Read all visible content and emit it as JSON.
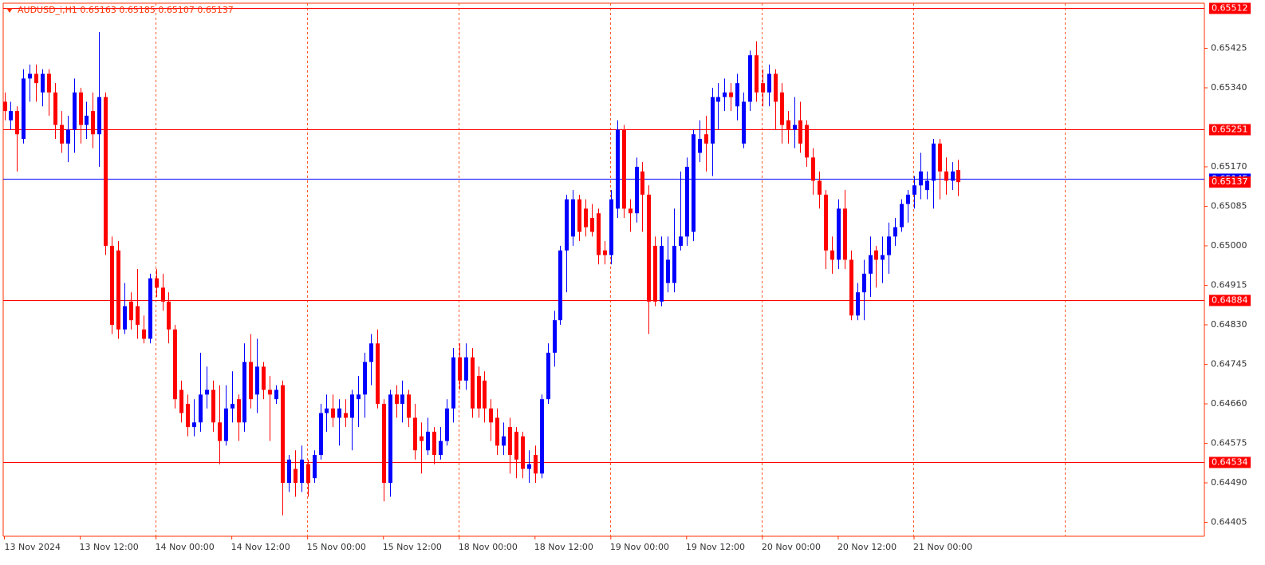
{
  "chart_data": {
    "type": "candlestick",
    "title": "AUDUSD_i,H1  0.65163 0.65185 0.65107 0.65137",
    "categories": [
      "13 Nov 2024",
      null,
      null,
      null,
      null,
      null,
      null,
      null,
      null,
      null,
      null,
      null,
      "13 Nov 12:00",
      null,
      null,
      null,
      null,
      null,
      null,
      null,
      null,
      null,
      null,
      null,
      "14 Nov 00:00",
      null,
      null,
      null,
      null,
      null,
      null,
      null,
      null,
      null,
      null,
      null,
      "14 Nov 12:00",
      null,
      null,
      null,
      null,
      null,
      null,
      null,
      null,
      null,
      null,
      null,
      "15 Nov 00:00",
      null,
      null,
      null,
      null,
      null,
      null,
      null,
      null,
      null,
      null,
      null,
      "15 Nov 12:00",
      null,
      null,
      null,
      null,
      null,
      null,
      null,
      null,
      null,
      null,
      null,
      "18 Nov 00:00",
      null,
      null,
      null,
      null,
      null,
      null,
      null,
      null,
      null,
      null,
      null,
      "18 Nov 12:00",
      null,
      null,
      null,
      null,
      null,
      null,
      null,
      null,
      null,
      null,
      null,
      "19 Nov 00:00",
      null,
      null,
      null,
      null,
      null,
      null,
      null,
      null,
      null,
      null,
      null,
      "19 Nov 12:00",
      null,
      null,
      null,
      null,
      null,
      null,
      null,
      null,
      null,
      null,
      null,
      "20 Nov 00:00",
      null,
      null,
      null,
      null,
      null,
      null,
      null,
      null,
      null,
      null,
      null,
      "20 Nov 12:00",
      null,
      null,
      null,
      null,
      null,
      null,
      null,
      null,
      null,
      null,
      null,
      "21 Nov 00:00",
      null,
      null,
      null,
      null,
      null,
      null,
      null
    ],
    "open": [
      0.6531,
      0.6527,
      0.6529,
      0.6523,
      0.6536,
      0.6537,
      0.6533,
      0.6537,
      0.6533,
      0.6526,
      0.6522,
      0.6525,
      0.6533,
      0.6526,
      0.6529,
      0.6524,
      0.6532,
      0.65,
      0.6499,
      0.6482,
      0.6488,
      0.6487,
      0.6482,
      0.648,
      0.6493,
      0.6491,
      0.6488,
      0.6482,
      0.6469,
      0.6466,
      0.6461,
      0.6462,
      0.6468,
      0.6469,
      0.6462,
      0.6458,
      0.6465,
      0.6467,
      0.6462,
      0.6475,
      0.6468,
      0.6474,
      0.6469,
      0.6467,
      0.647,
      0.6449,
      0.6452,
      0.6449,
      0.6453,
      0.645,
      0.6455,
      0.6464,
      0.6465,
      0.6463,
      0.6464,
      0.6463,
      0.6467,
      0.6468,
      0.6475,
      0.6479,
      0.6466,
      0.6449,
      0.6468,
      0.6466,
      0.6468,
      0.6463,
      0.6459,
      0.6456,
      0.646,
      0.6455,
      0.6458,
      0.6465,
      0.6476,
      0.6471,
      0.6476,
      0.6472,
      0.6471,
      0.6465,
      0.6463,
      0.6457,
      0.6461,
      0.646,
      0.6459,
      0.6452,
      0.6455,
      0.6451,
      0.6467,
      0.6477,
      0.6484,
      0.6499,
      0.6502,
      0.651,
      0.6508,
      0.6506,
      0.6507,
      0.6499,
      0.6498,
      0.6508,
      0.6525,
      0.6508,
      0.6507,
      0.6516,
      0.6511,
      0.65,
      0.6488,
      0.6492,
      0.6492,
      0.65,
      0.6502,
      0.6503,
      0.652,
      0.6524,
      0.6522,
      0.6531,
      0.6532,
      0.6533,
      0.653,
      0.6522,
      0.6531,
      0.6541,
      0.6535,
      0.6533,
      0.6537,
      0.6533,
      0.6527,
      0.6525,
      0.6527,
      0.6526,
      0.6519,
      0.6514,
      0.6511,
      0.6499,
      0.6497,
      0.6508,
      0.6497,
      0.6485,
      0.649,
      0.6494,
      0.6499,
      0.6497,
      0.6498,
      0.6502,
      0.6504,
      0.6509,
      0.6511,
      0.6513,
      0.6512,
      0.6514,
      0.6522,
      0.6516,
      0.6514,
      0.65163
    ],
    "high": [
      0.6533,
      0.6531,
      0.653,
      0.6538,
      0.6539,
      0.6539,
      0.6538,
      0.6538,
      0.6535,
      0.6529,
      0.6528,
      0.6536,
      0.6534,
      0.6531,
      0.6533,
      0.6546,
      0.6533,
      0.6502,
      0.6501,
      0.6492,
      0.649,
      0.6495,
      0.6485,
      0.6494,
      0.6495,
      0.6494,
      0.649,
      0.6483,
      0.6471,
      0.6468,
      0.6467,
      0.6477,
      0.6474,
      0.6471,
      0.647,
      0.647,
      0.6473,
      0.6468,
      0.6479,
      0.6481,
      0.648,
      0.6475,
      0.6472,
      0.647,
      0.6471,
      0.6455,
      0.6456,
      0.6457,
      0.6454,
      0.6456,
      0.6466,
      0.6468,
      0.6468,
      0.6467,
      0.6467,
      0.6469,
      0.6472,
      0.6477,
      0.6481,
      0.6482,
      0.6467,
      0.6469,
      0.647,
      0.6471,
      0.6469,
      0.6466,
      0.6462,
      0.6463,
      0.6461,
      0.6461,
      0.6467,
      0.6478,
      0.6479,
      0.6479,
      0.6478,
      0.6474,
      0.6473,
      0.6467,
      0.6465,
      0.6462,
      0.6463,
      0.6461,
      0.646,
      0.6456,
      0.6457,
      0.6468,
      0.6479,
      0.6486,
      0.65,
      0.6511,
      0.6512,
      0.6511,
      0.651,
      0.6509,
      0.6508,
      0.6501,
      0.6512,
      0.6527,
      0.6526,
      0.651,
      0.6519,
      0.6518,
      0.6513,
      0.6502,
      0.6502,
      0.6502,
      0.6508,
      0.6516,
      0.6519,
      0.6525,
      0.6527,
      0.6528,
      0.6534,
      0.6535,
      0.6536,
      0.6535,
      0.6537,
      0.6533,
      0.6542,
      0.6544,
      0.6538,
      0.6539,
      0.6538,
      0.6535,
      0.6529,
      0.6532,
      0.6531,
      0.6527,
      0.6521,
      0.6516,
      0.6512,
      0.6502,
      0.651,
      0.6512,
      0.6499,
      0.6492,
      0.6497,
      0.6502,
      0.65,
      0.6502,
      0.6505,
      0.6506,
      0.651,
      0.6512,
      0.6515,
      0.652,
      0.6516,
      0.6523,
      0.6523,
      0.6519,
      0.6518,
      0.65185
    ],
    "low": [
      0.6527,
      0.6525,
      0.6516,
      0.6522,
      0.6531,
      0.6531,
      0.653,
      0.6528,
      0.6523,
      0.652,
      0.6518,
      0.652,
      0.6522,
      0.6523,
      0.6521,
      0.6517,
      0.6498,
      0.6481,
      0.648,
      0.6481,
      0.6482,
      0.648,
      0.6479,
      0.6479,
      0.6489,
      0.6486,
      0.6479,
      0.6465,
      0.6462,
      0.6459,
      0.6459,
      0.646,
      0.6465,
      0.646,
      0.6453,
      0.6457,
      0.6462,
      0.6458,
      0.646,
      0.6465,
      0.6464,
      0.6467,
      0.6458,
      0.6466,
      0.6442,
      0.6447,
      0.6446,
      0.6447,
      0.6446,
      0.6449,
      0.6454,
      0.646,
      0.6461,
      0.6457,
      0.6461,
      0.6456,
      0.6461,
      0.6463,
      0.647,
      0.6465,
      0.6445,
      0.6446,
      0.6463,
      0.6462,
      0.6461,
      0.6454,
      0.6451,
      0.6455,
      0.6453,
      0.6454,
      0.6457,
      0.6462,
      0.6469,
      0.6469,
      0.6463,
      0.6463,
      0.6462,
      0.6458,
      0.6455,
      0.6455,
      0.6451,
      0.645,
      0.645,
      0.6449,
      0.6449,
      0.645,
      0.6466,
      0.6474,
      0.6483,
      0.649,
      0.65,
      0.6501,
      0.6502,
      0.6502,
      0.6496,
      0.6496,
      0.6496,
      0.6506,
      0.6506,
      0.6503,
      0.6505,
      0.6503,
      0.6481,
      0.6487,
      0.6487,
      0.649,
      0.649,
      0.6499,
      0.65,
      0.6501,
      0.6518,
      0.6516,
      0.6515,
      0.6525,
      0.6529,
      0.6529,
      0.6527,
      0.6521,
      0.6529,
      0.6531,
      0.653,
      0.653,
      0.6525,
      0.6522,
      0.6522,
      0.6521,
      0.652,
      0.6517,
      0.6511,
      0.6508,
      0.6495,
      0.6494,
      0.6495,
      0.6495,
      0.6484,
      0.6484,
      0.6484,
      0.6489,
      0.6491,
      0.6492,
      0.6494,
      0.65,
      0.6503,
      0.6505,
      0.6508,
      0.651,
      0.651,
      0.6508,
      0.651,
      0.6511,
      0.6512,
      0.65107
    ],
    "close": [
      0.6529,
      0.6529,
      0.6524,
      0.6536,
      0.6537,
      0.6535,
      0.6537,
      0.6533,
      0.6526,
      0.6522,
      0.6525,
      0.6533,
      0.6526,
      0.6528,
      0.6524,
      0.6532,
      0.65,
      0.6483,
      0.6482,
      0.6487,
      0.6484,
      0.6483,
      0.648,
      0.6493,
      0.6491,
      0.6488,
      0.6482,
      0.6467,
      0.6464,
      0.6461,
      0.6462,
      0.6468,
      0.6469,
      0.6462,
      0.6458,
      0.6465,
      0.6466,
      0.6462,
      0.6475,
      0.6467,
      0.6474,
      0.6469,
      0.6468,
      0.6469,
      0.6449,
      0.6454,
      0.6449,
      0.6454,
      0.6449,
      0.6455,
      0.6464,
      0.6465,
      0.6463,
      0.6465,
      0.6463,
      0.6468,
      0.6468,
      0.6475,
      0.6479,
      0.6466,
      0.6449,
      0.6468,
      0.6466,
      0.6468,
      0.6463,
      0.6456,
      0.6458,
      0.646,
      0.6455,
      0.6458,
      0.6465,
      0.6476,
      0.6471,
      0.6476,
      0.6465,
      0.6465,
      0.6465,
      0.6462,
      0.6457,
      0.6459,
      0.6455,
      0.6454,
      0.6452,
      0.6453,
      0.6451,
      0.6467,
      0.6477,
      0.6484,
      0.6499,
      0.651,
      0.651,
      0.6503,
      0.6504,
      0.6503,
      0.6498,
      0.6498,
      0.651,
      0.6525,
      0.6508,
      0.6507,
      0.6517,
      0.6511,
      0.6488,
      0.6488,
      0.65,
      0.6497,
      0.65,
      0.6502,
      0.6517,
      0.6524,
      0.6523,
      0.6522,
      0.6532,
      0.6532,
      0.6533,
      0.6532,
      0.6535,
      0.6531,
      0.6541,
      0.6533,
      0.6533,
      0.6537,
      0.6531,
      0.6526,
      0.6525,
      0.6526,
      0.6522,
      0.6519,
      0.6514,
      0.6511,
      0.6499,
      0.6497,
      0.6508,
      0.6497,
      0.6485,
      0.649,
      0.6494,
      0.6498,
      0.6497,
      0.6498,
      0.6502,
      0.6504,
      0.6509,
      0.6511,
      0.6513,
      0.6516,
      0.6514,
      0.6522,
      0.6516,
      0.6514,
      0.6516,
      0.65137
    ],
    "up_color": "#0000ff",
    "down_color": "#ff0000",
    "ylim": [
      0.64375,
      0.65522
    ],
    "yticks": [
      0.65425,
      {
        "value": 0.6534,
        "label": "0.65340"
      },
      {
        "value": 0.6517,
        "label": "0.65170"
      },
      0.65085,
      {
        "value": 0.65,
        "label": "0.65000"
      },
      0.64915,
      {
        "value": 0.6483,
        "label": "0.64830"
      },
      0.64745,
      {
        "value": 0.6466,
        "label": "0.64660"
      },
      0.64575,
      {
        "value": 0.6449,
        "label": "0.64490"
      },
      0.64405
    ],
    "levels": [
      {
        "value": 0.65512,
        "color": "#ff0000"
      },
      {
        "value": 0.65251,
        "color": "#ff0000"
      },
      {
        "value": 0.65145,
        "color": "#0000ff"
      },
      {
        "value": 0.64884,
        "color": "#ff0000"
      },
      {
        "value": 0.64534,
        "color": "#ff0000"
      }
    ],
    "current_price": {
      "value": 0.65137,
      "color": "#ff0000"
    },
    "grid": true
  }
}
